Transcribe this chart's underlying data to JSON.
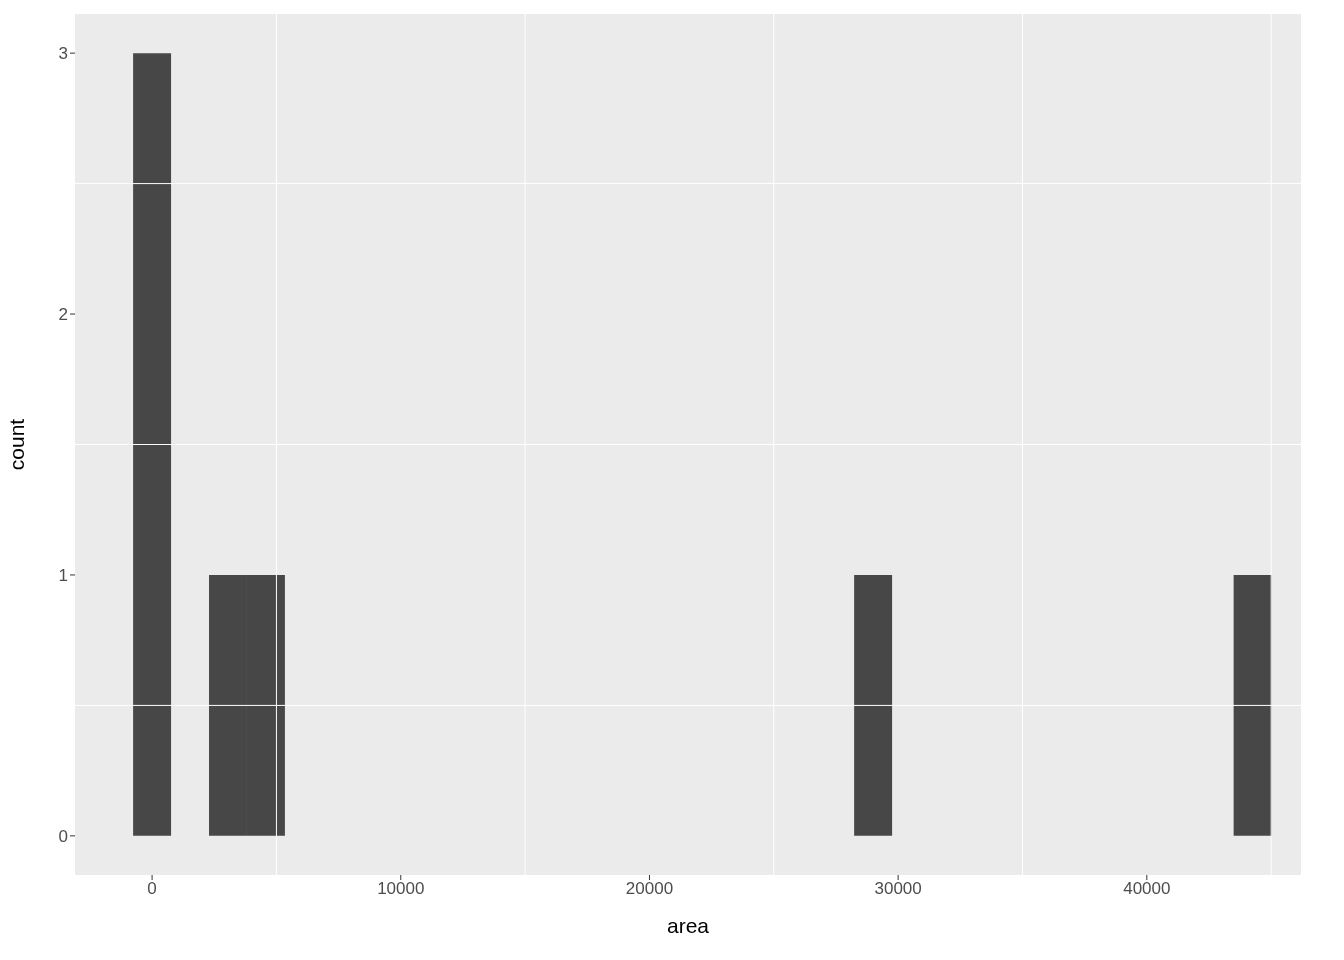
{
  "chart_data": {
    "type": "histogram",
    "xlabel": "area",
    "ylabel": "count",
    "color": "#474747",
    "bins": [
      -763,
      763,
      2289,
      3815,
      5341,
      6867,
      8393,
      9919,
      11445,
      12971,
      14497,
      16023,
      17549,
      19075,
      20601,
      22127,
      23653,
      25179,
      26705,
      28231,
      29757,
      31283,
      32809,
      34335,
      35861,
      37387,
      38913,
      40439,
      41965,
      43491,
      45017
    ],
    "values": [
      3,
      0,
      1,
      1,
      0,
      0,
      0,
      0,
      0,
      0,
      0,
      0,
      0,
      0,
      0,
      0,
      0,
      0,
      0,
      1,
      0,
      0,
      0,
      0,
      0,
      0,
      0,
      0,
      0,
      1
    ],
    "xlim": [
      -3100,
      46200
    ],
    "xticks": [
      0,
      10000,
      20000,
      30000,
      40000
    ],
    "ylim": [
      -0.15,
      3.15
    ],
    "yticks": [
      0,
      1,
      2,
      3
    ],
    "grid": true
  }
}
